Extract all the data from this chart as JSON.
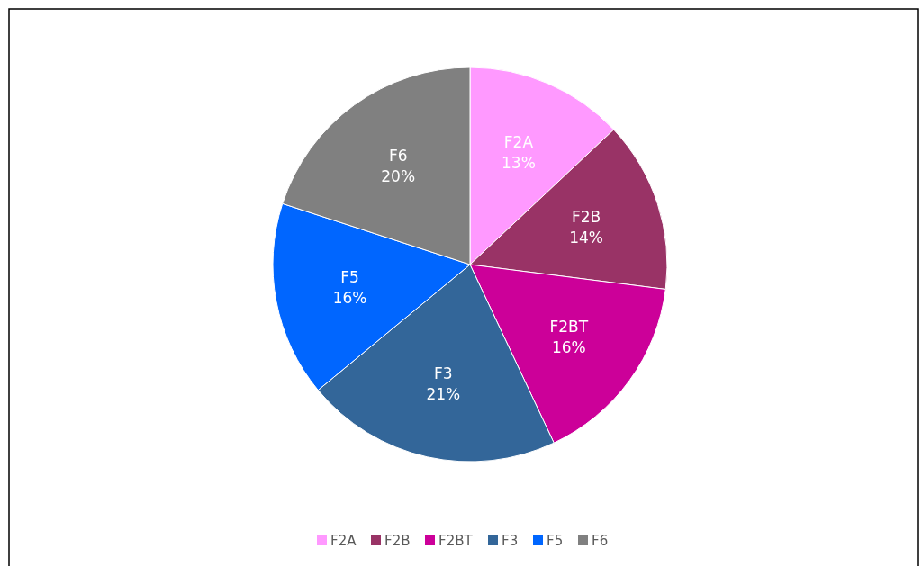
{
  "chart_data": {
    "type": "pie",
    "categories": [
      "F2A",
      "F2B",
      "F2BT",
      "F3",
      "F5",
      "F6"
    ],
    "values": [
      13,
      14,
      16,
      21,
      16,
      20
    ],
    "colors": [
      "#ff99ff",
      "#993366",
      "#cc0099",
      "#336699",
      "#0066ff",
      "#808080"
    ],
    "value_labels": [
      "13%",
      "14%",
      "16%",
      "21%",
      "16%",
      "20%"
    ],
    "legend": "bottom"
  }
}
